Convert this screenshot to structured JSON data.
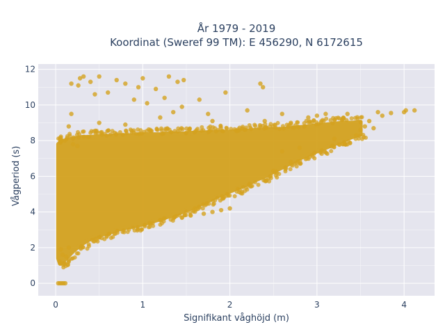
{
  "chart_data": {
    "type": "scatter",
    "title_line1": "År 1979 - 2019",
    "title_line2": "Koordinat (Sweref 99 TM): E 456290, N 6172615",
    "xlabel": "Signifikant våghöjd (m)",
    "ylabel": "Vågperiod (s)",
    "xlim": [
      -0.2,
      4.35
    ],
    "ylim": [
      -0.7,
      12.3
    ],
    "xticks": [
      0,
      1,
      2,
      3,
      4
    ],
    "yticks": [
      0,
      2,
      4,
      6,
      8,
      10,
      12
    ],
    "grid": true,
    "marker_color": "#d4a21f",
    "plot_background": "#e5e5ee",
    "grid_color": "#ffffff",
    "density_envelope": {
      "x": [
        0.03,
        0.05,
        0.1,
        0.2,
        0.3,
        0.4,
        0.5,
        0.6,
        0.7,
        0.8,
        0.9,
        1.0,
        1.1,
        1.2,
        1.3,
        1.4,
        1.5,
        1.6,
        1.7,
        1.8,
        1.9,
        2.0,
        2.1,
        2.2,
        2.3,
        2.4,
        2.5,
        2.6,
        2.7,
        2.8,
        2.9,
        3.0,
        3.1,
        3.2,
        3.3,
        3.4,
        3.5
      ],
      "y_low": [
        1.4,
        1.1,
        1.3,
        1.8,
        2.2,
        2.5,
        2.7,
        2.8,
        3.0,
        3.1,
        3.2,
        3.3,
        3.45,
        3.6,
        3.75,
        3.9,
        4.1,
        4.3,
        4.5,
        4.75,
        4.95,
        5.15,
        5.35,
        5.55,
        5.8,
        6.0,
        6.25,
        6.5,
        6.75,
        7.0,
        7.2,
        7.4,
        7.6,
        7.8,
        8.0,
        8.2,
        8.35
      ],
      "y_high": [
        7.8,
        7.9,
        8.0,
        8.1,
        8.2,
        8.2,
        8.25,
        8.25,
        8.3,
        8.3,
        8.3,
        8.35,
        8.35,
        8.35,
        8.4,
        8.4,
        8.4,
        8.45,
        8.45,
        8.5,
        8.5,
        8.5,
        8.55,
        8.55,
        8.6,
        8.6,
        8.65,
        8.65,
        8.7,
        8.75,
        8.8,
        8.85,
        8.9,
        8.95,
        9.0,
        9.0,
        9.05
      ]
    },
    "points": [
      [
        0.03,
        0.0
      ],
      [
        0.05,
        0.0
      ],
      [
        0.07,
        0.0
      ],
      [
        0.09,
        0.0
      ],
      [
        0.11,
        0.0
      ],
      [
        0.05,
        1.2
      ],
      [
        0.06,
        1.9
      ],
      [
        0.08,
        1.6
      ],
      [
        0.12,
        1.5
      ],
      [
        0.15,
        2.0
      ],
      [
        0.28,
        11.5
      ],
      [
        0.32,
        11.6
      ],
      [
        0.26,
        11.1
      ],
      [
        0.4,
        11.3
      ],
      [
        0.18,
        11.2
      ],
      [
        0.5,
        11.6
      ],
      [
        0.7,
        11.4
      ],
      [
        0.8,
        11.2
      ],
      [
        1.0,
        11.5
      ],
      [
        1.3,
        11.6
      ],
      [
        1.4,
        11.3
      ],
      [
        1.47,
        11.4
      ],
      [
        0.6,
        10.7
      ],
      [
        0.95,
        11.0
      ],
      [
        1.15,
        10.9
      ],
      [
        0.9,
        10.3
      ],
      [
        1.25,
        10.4
      ],
      [
        1.65,
        10.3
      ],
      [
        1.95,
        10.7
      ],
      [
        2.35,
        11.2
      ],
      [
        2.38,
        11.0
      ],
      [
        0.45,
        10.6
      ],
      [
        1.05,
        10.1
      ],
      [
        1.35,
        9.6
      ],
      [
        1.75,
        9.5
      ],
      [
        2.2,
        9.7
      ],
      [
        2.6,
        9.5
      ],
      [
        2.9,
        9.3
      ],
      [
        3.0,
        9.4
      ],
      [
        3.1,
        9.5
      ],
      [
        3.35,
        9.5
      ],
      [
        3.7,
        9.6
      ],
      [
        3.85,
        9.55
      ],
      [
        4.0,
        9.6
      ],
      [
        4.12,
        9.7
      ],
      [
        4.02,
        9.7
      ],
      [
        3.75,
        9.4
      ],
      [
        3.6,
        9.1
      ],
      [
        0.18,
        9.5
      ],
      [
        0.15,
        8.8
      ],
      [
        0.5,
        9.0
      ],
      [
        0.8,
        8.9
      ],
      [
        3.3,
        7.8
      ],
      [
        3.45,
        8.3
      ],
      [
        2.5,
        6.3
      ],
      [
        2.7,
        6.8
      ],
      [
        1.9,
        4.1
      ],
      [
        2.0,
        4.2
      ],
      [
        1.8,
        4.0
      ],
      [
        1.6,
        4.2
      ],
      [
        1.7,
        3.9
      ],
      [
        1.55,
        3.8
      ],
      [
        2.6,
        7.4
      ],
      [
        2.8,
        7.6
      ],
      [
        3.2,
        8.1
      ],
      [
        1.45,
        9.9
      ],
      [
        1.8,
        9.1
      ],
      [
        2.4,
        9.1
      ],
      [
        2.7,
        9.0
      ],
      [
        1.2,
        9.3
      ],
      [
        0.25,
        7.7
      ],
      [
        0.2,
        7.8
      ],
      [
        3.5,
        8.6
      ],
      [
        3.55,
        8.8
      ],
      [
        3.65,
        8.7
      ]
    ]
  }
}
